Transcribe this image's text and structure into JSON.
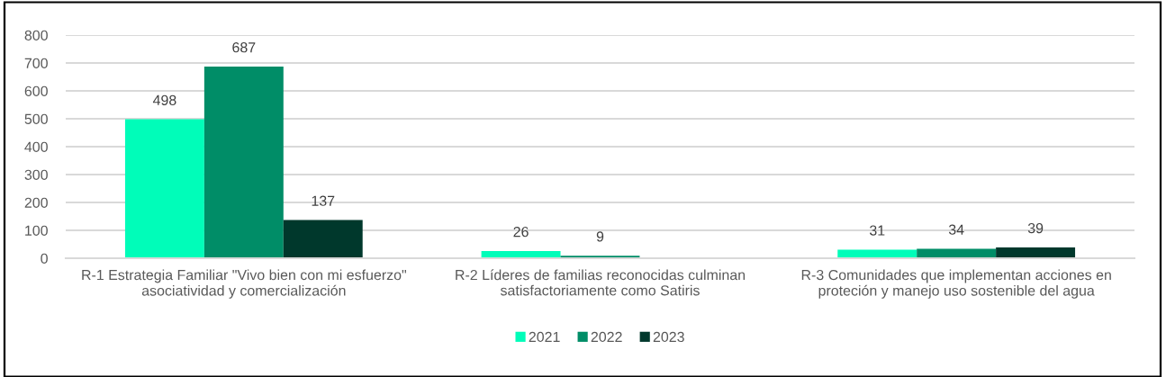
{
  "chart_data": {
    "type": "bar",
    "categories": [
      "R-1 Estrategia Familiar \"Vivo bien con mi esfuerzo\"\nasociatividad y comercialización",
      "R-2 Líderes de familias reconocidas culminan\nsatisfactoriamente como Satiris",
      "R-3 Comunidades que implementan acciones en\nproteción y manejo uso sostenible del agua"
    ],
    "series": [
      {
        "name": "2021",
        "color": "#00fdb9",
        "values": [
          498,
          26,
          31
        ]
      },
      {
        "name": "2022",
        "color": "#008d67",
        "values": [
          687,
          9,
          34
        ]
      },
      {
        "name": "2023",
        "color": "#00382c",
        "values": [
          137,
          null,
          39
        ]
      }
    ],
    "ylim": [
      0,
      800
    ],
    "yticks": [
      0,
      100,
      200,
      300,
      400,
      500,
      600,
      700,
      800
    ],
    "grid": "y",
    "legend": "bottom",
    "data_labels": true
  }
}
